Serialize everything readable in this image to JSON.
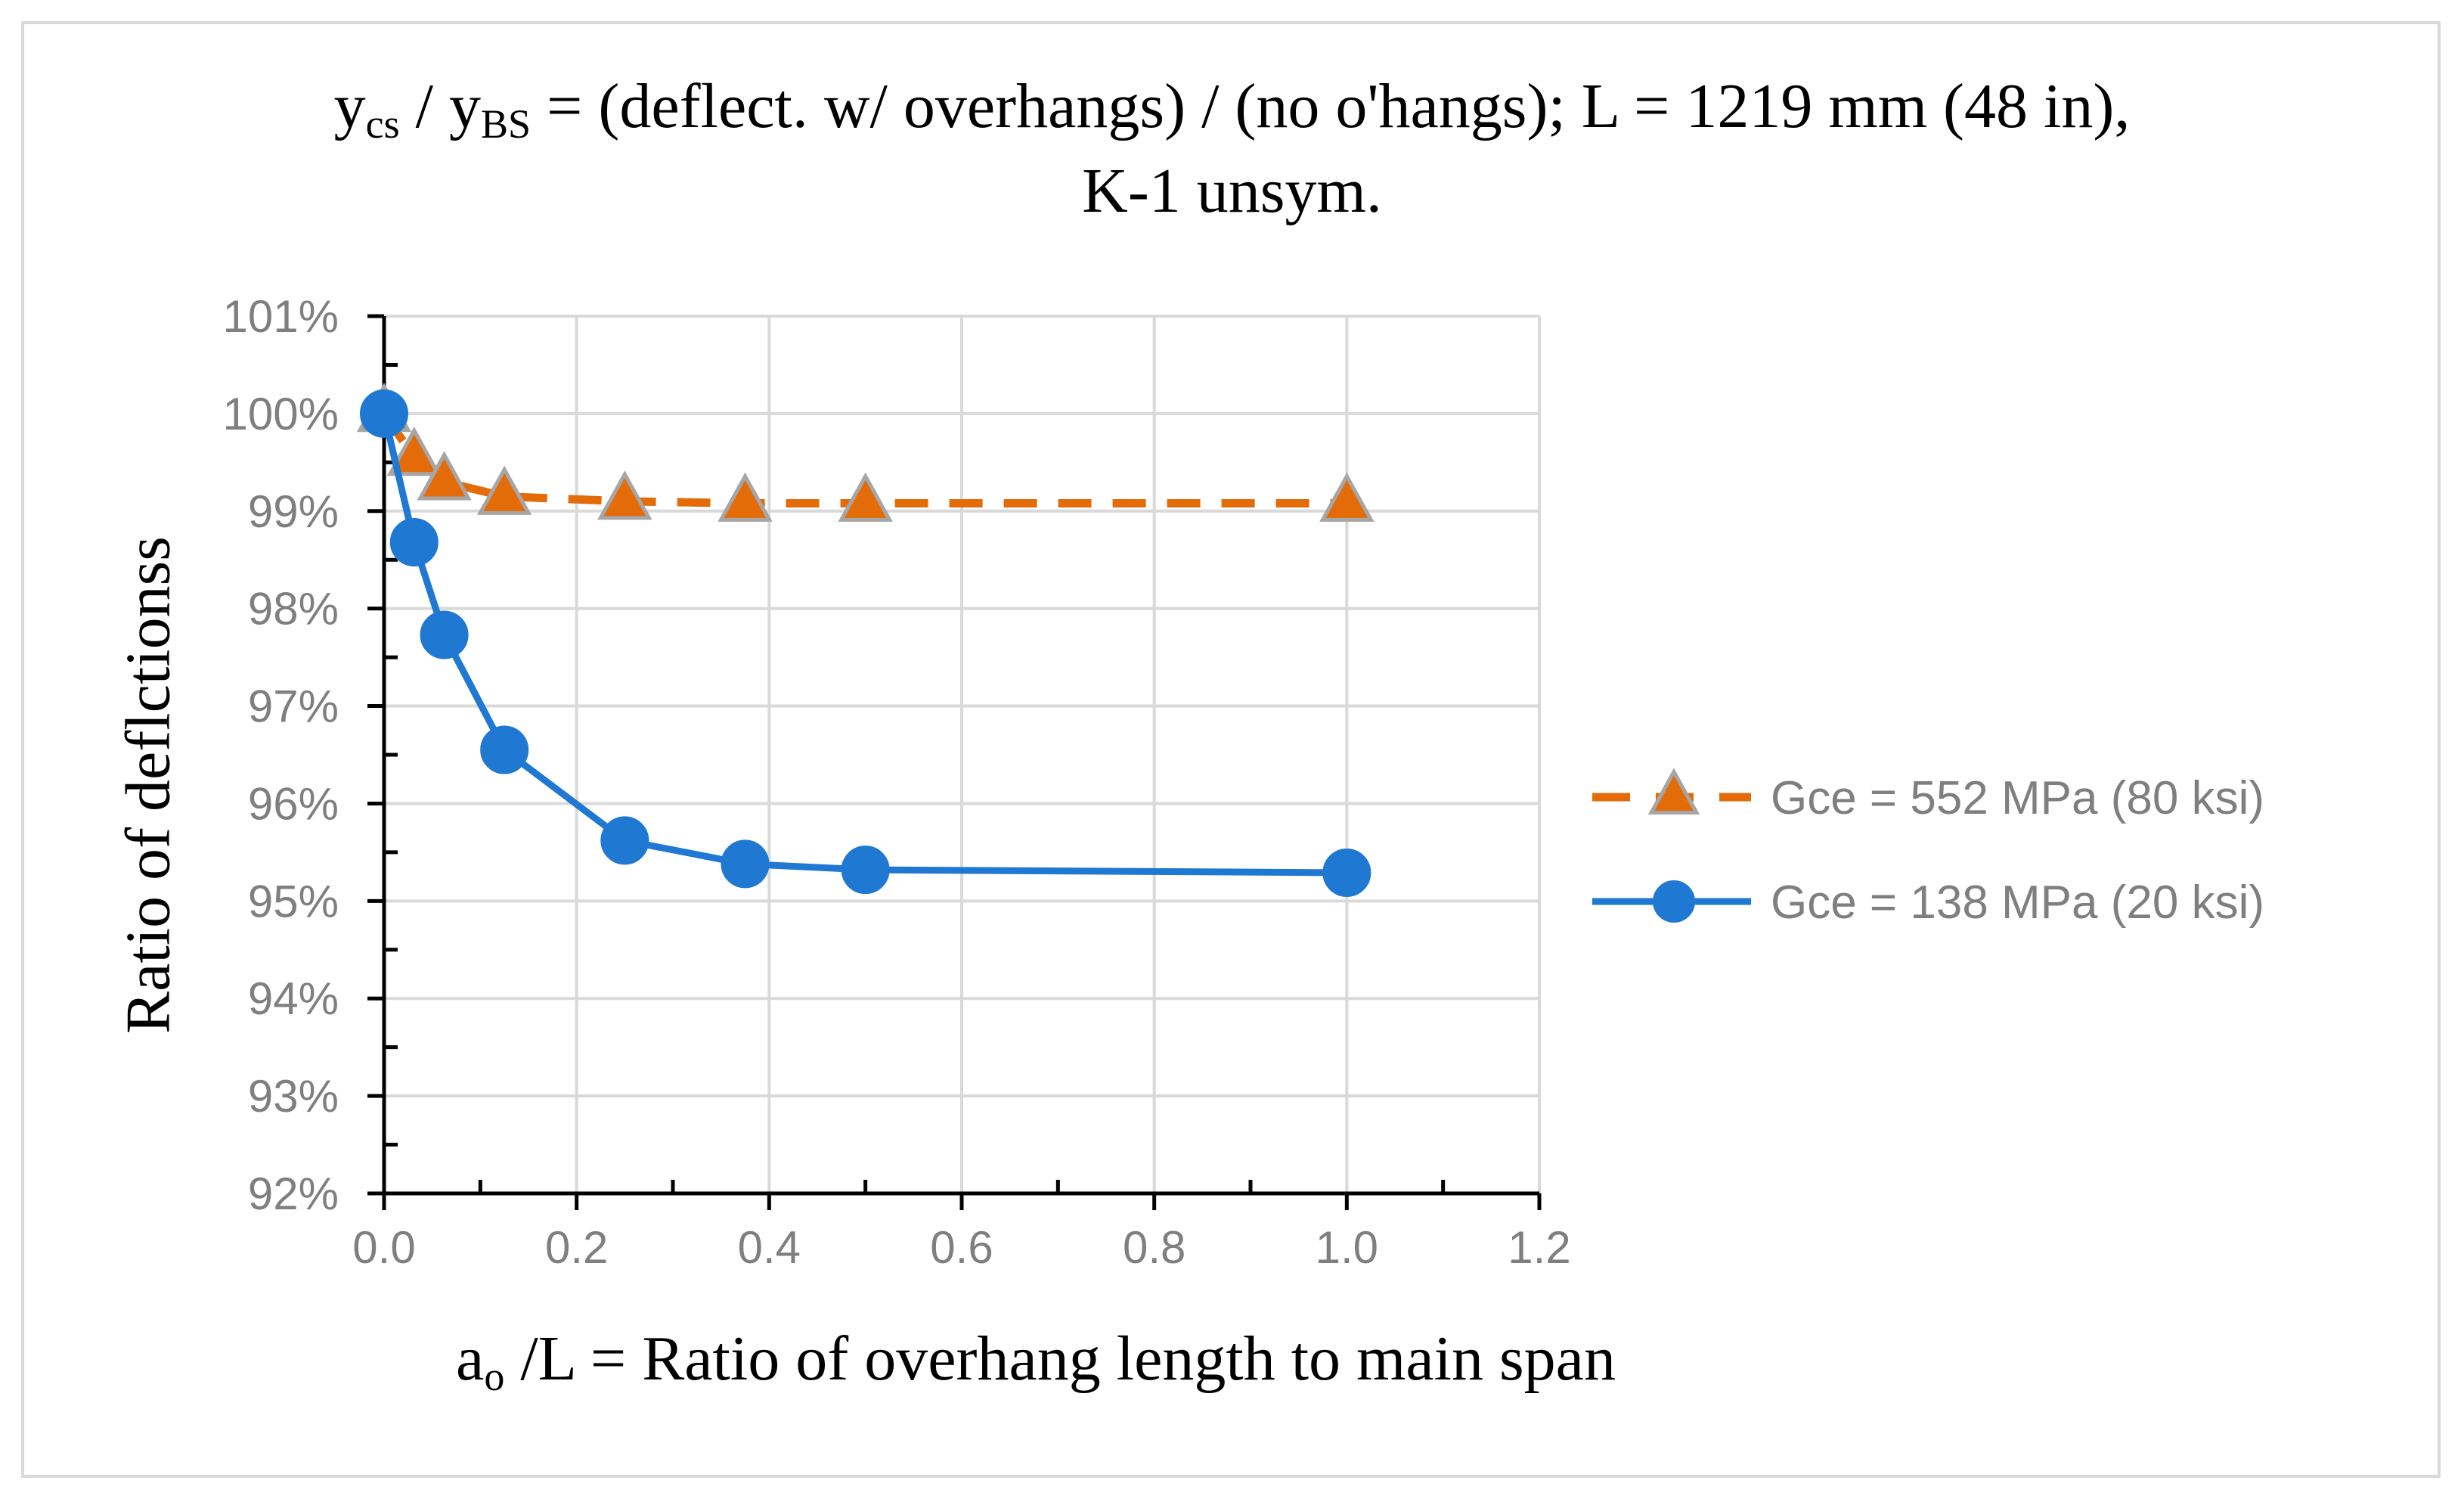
{
  "chart_data": {
    "type": "line",
    "title": {
      "y1": "y",
      "y1_sub": "cs",
      "sep": " / y",
      "y2_sub": "BS",
      "rest": " = (deflect. w/ overhangs) / (no o'hangs); L = 1219 mm (48 in),",
      "line2": "K-1 unsym."
    },
    "ylabel": "Ratio of deflctionss",
    "xlabel": {
      "a": "a",
      "a_sub": "o",
      "rest": " /L = Ratio of overhang length to main span"
    },
    "xlim": [
      0,
      1.2
    ],
    "ylim": [
      92,
      101
    ],
    "x_ticks": [
      "0.0",
      "0.2",
      "0.4",
      "0.6",
      "0.8",
      "1.0",
      "1.2"
    ],
    "y_ticks": [
      "92%",
      "93%",
      "94%",
      "95%",
      "96%",
      "97%",
      "98%",
      "99%",
      "100%",
      "101%"
    ],
    "grid": true,
    "legend_position": "right",
    "series": [
      {
        "name": "Gce = 552 MPa (80 ksi)",
        "color": "#e36c09",
        "marker_color": "#e36c09",
        "marker_edge": "#a6a6a6",
        "marker": "triangle",
        "line_style": "dashed",
        "x": [
          0,
          0.03125,
          0.0625,
          0.125,
          0.25,
          0.375,
          0.5,
          1.0
        ],
        "values": [
          100.0,
          99.55,
          99.3,
          99.15,
          99.1,
          99.08,
          99.08,
          99.08
        ]
      },
      {
        "name": "Gce = 138 MPa (20 ksi)",
        "color": "#1f78d1",
        "marker_color": "#1f78d1",
        "marker_edge": "#1f78d1",
        "marker": "circle",
        "line_style": "solid",
        "x": [
          0,
          0.03125,
          0.0625,
          0.125,
          0.25,
          0.375,
          0.5,
          1.0
        ],
        "values": [
          100.0,
          98.68,
          97.73,
          96.55,
          95.62,
          95.38,
          95.32,
          95.29
        ]
      }
    ]
  }
}
